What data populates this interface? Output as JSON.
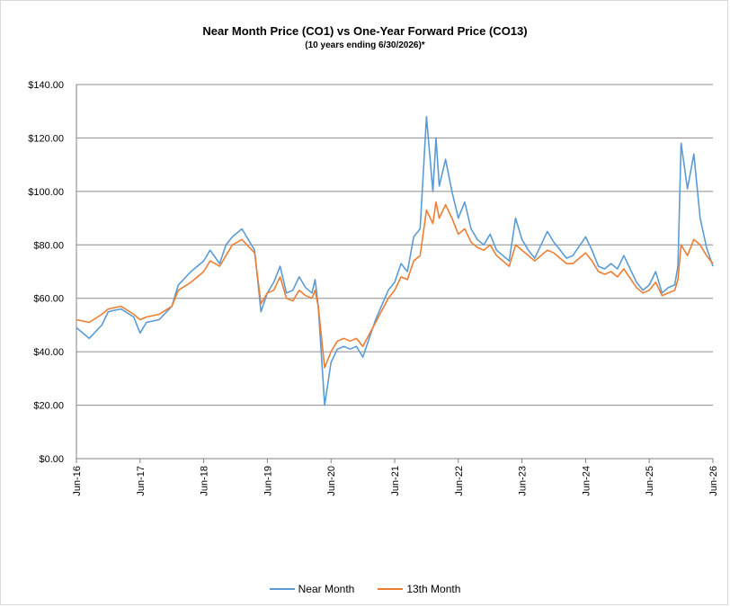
{
  "chart_data": {
    "type": "line",
    "title": "Near Month Price (CO1) vs One-Year Forward Price  (CO13)",
    "subtitle": "(10 years ending  6/30/2026)*",
    "xlabel": "",
    "ylabel": "",
    "ylim": [
      0,
      140
    ],
    "yticks": [
      "$0.00",
      "$20.00",
      "$40.00",
      "$60.00",
      "$80.00",
      "$100.00",
      "$120.00",
      "$140.00"
    ],
    "xticks": [
      "Jun-16",
      "Jun-17",
      "Jun-18",
      "Jun-19",
      "Jun-20",
      "Jun-21",
      "Jun-22",
      "Jun-23",
      "Jun-24",
      "Jun-25",
      "Jun-26"
    ],
    "grid": "horizontal",
    "legend_position": "bottom",
    "x_unit": "date (year fraction, 2016.5 = Jun-16)",
    "series": [
      {
        "name": "Near Month",
        "color": "#5b9bd5",
        "x": [
          2016.5,
          2016.7,
          2016.9,
          2017.0,
          2017.2,
          2017.4,
          2017.5,
          2017.6,
          2017.8,
          2018.0,
          2018.1,
          2018.3,
          2018.5,
          2018.6,
          2018.75,
          2018.85,
          2018.95,
          2019.1,
          2019.3,
          2019.4,
          2019.5,
          2019.6,
          2019.7,
          2019.8,
          2019.9,
          2020.0,
          2020.1,
          2020.2,
          2020.25,
          2020.3,
          2020.4,
          2020.5,
          2020.6,
          2020.7,
          2020.8,
          2020.9,
          2021.0,
          2021.2,
          2021.4,
          2021.5,
          2021.6,
          2021.7,
          2021.8,
          2021.9,
          2022.0,
          2022.1,
          2022.15,
          2022.2,
          2022.3,
          2022.4,
          2022.5,
          2022.6,
          2022.7,
          2022.8,
          2022.9,
          2023.0,
          2023.1,
          2023.3,
          2023.4,
          2023.5,
          2023.6,
          2023.7,
          2023.8,
          2023.9,
          2024.0,
          2024.2,
          2024.3,
          2024.5,
          2024.6,
          2024.7,
          2024.8,
          2024.9,
          2025.0,
          2025.1,
          2025.3,
          2025.4,
          2025.5,
          2025.6,
          2025.7,
          2025.8,
          2025.9,
          2025.95,
          2026.0,
          2026.1,
          2026.2,
          2026.3,
          2026.4,
          2026.5
        ],
        "y": [
          49,
          45,
          50,
          55,
          56,
          53,
          47,
          51,
          52,
          57,
          65,
          70,
          74,
          78,
          73,
          80,
          83,
          86,
          78,
          55,
          62,
          66,
          72,
          62,
          63,
          68,
          64,
          62,
          67,
          57,
          20,
          36,
          41,
          42,
          41,
          42,
          38,
          52,
          63,
          66,
          73,
          70,
          83,
          86,
          128,
          100,
          120,
          102,
          112,
          100,
          90,
          96,
          86,
          82,
          80,
          84,
          78,
          74,
          90,
          82,
          78,
          75,
          80,
          85,
          81,
          75,
          76,
          83,
          78,
          72,
          71,
          73,
          71,
          76,
          66,
          63,
          65,
          70,
          62,
          64,
          65,
          72,
          118,
          101,
          114,
          90,
          79,
          72
        ]
      },
      {
        "name": "13th Month",
        "color": "#ed7d31",
        "x": [
          2016.5,
          2016.7,
          2016.9,
          2017.0,
          2017.2,
          2017.4,
          2017.5,
          2017.6,
          2017.8,
          2018.0,
          2018.1,
          2018.3,
          2018.5,
          2018.6,
          2018.75,
          2018.85,
          2018.95,
          2019.1,
          2019.3,
          2019.4,
          2019.5,
          2019.6,
          2019.7,
          2019.8,
          2019.9,
          2020.0,
          2020.1,
          2020.2,
          2020.25,
          2020.3,
          2020.4,
          2020.5,
          2020.6,
          2020.7,
          2020.8,
          2020.9,
          2021.0,
          2021.2,
          2021.4,
          2021.5,
          2021.6,
          2021.7,
          2021.8,
          2021.9,
          2022.0,
          2022.1,
          2022.15,
          2022.2,
          2022.3,
          2022.4,
          2022.5,
          2022.6,
          2022.7,
          2022.8,
          2022.9,
          2023.0,
          2023.1,
          2023.3,
          2023.4,
          2023.5,
          2023.6,
          2023.7,
          2023.8,
          2023.9,
          2024.0,
          2024.2,
          2024.3,
          2024.5,
          2024.6,
          2024.7,
          2024.8,
          2024.9,
          2025.0,
          2025.1,
          2025.3,
          2025.4,
          2025.5,
          2025.6,
          2025.7,
          2025.8,
          2025.9,
          2025.95,
          2026.0,
          2026.1,
          2026.2,
          2026.3,
          2026.4,
          2026.5
        ],
        "y": [
          52,
          51,
          54,
          56,
          57,
          54,
          52,
          53,
          54,
          57,
          63,
          66,
          70,
          74,
          72,
          76,
          80,
          82,
          77,
          58,
          62,
          63,
          68,
          60,
          59,
          63,
          61,
          60,
          63,
          57,
          34,
          40,
          44,
          45,
          44,
          45,
          42,
          51,
          60,
          63,
          68,
          67,
          74,
          76,
          93,
          88,
          96,
          90,
          95,
          90,
          84,
          86,
          81,
          79,
          78,
          80,
          76,
          72,
          80,
          78,
          76,
          74,
          76,
          78,
          77,
          73,
          73,
          77,
          74,
          70,
          69,
          70,
          68,
          71,
          64,
          62,
          63,
          66,
          61,
          62,
          63,
          67,
          80,
          76,
          82,
          80,
          76,
          73
        ]
      }
    ]
  }
}
